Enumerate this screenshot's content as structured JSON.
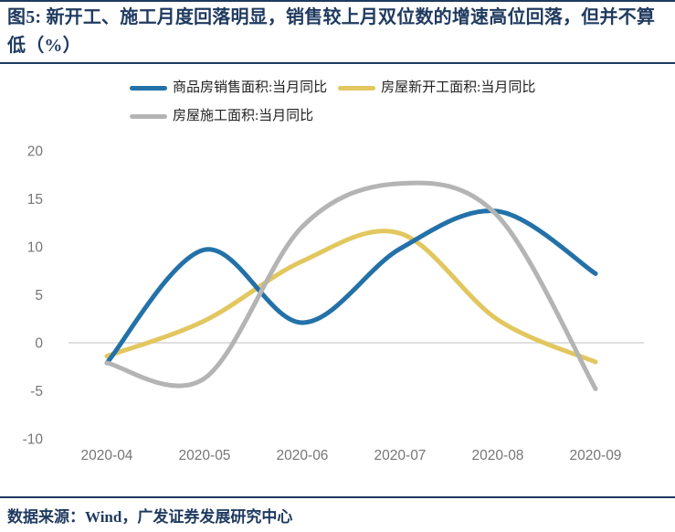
{
  "figure": {
    "title": "图5: 新开工、施工月度回落明显，销售较上月双位数的增速高位回落，但并不算低（%）",
    "source_note": "数据来源：Wind，广发证券发展研究中心"
  },
  "colors": {
    "navy": "#1F3A5F",
    "blue": "#2371A8",
    "yellow": "#E2C75F",
    "gray": "#B4B4B4",
    "axis_text": "#767676",
    "zero_line": "#D6D6D6"
  },
  "chart_data": {
    "type": "line",
    "title": "新开工、施工月度回落明显，销售较上月双位数的增速高位回落，但并不算低",
    "unit": "%",
    "categories": [
      "2020-04",
      "2020-05",
      "2020-06",
      "2020-07",
      "2020-08",
      "2020-09"
    ],
    "series": [
      {
        "name": "商品房销售面积:当月同比",
        "color_key": "blue",
        "values": [
          -2.1,
          9.7,
          2.1,
          9.8,
          13.7,
          7.2
        ]
      },
      {
        "name": "房屋新开工面积:当月同比",
        "color_key": "yellow",
        "values": [
          -1.4,
          2.3,
          8.5,
          11.4,
          2.4,
          -2.0
        ]
      },
      {
        "name": "房屋施工面积:当月同比",
        "color_key": "gray",
        "values": [
          -2.1,
          -3.7,
          12.1,
          16.6,
          13.2,
          -4.8
        ]
      }
    ],
    "y_ticks": [
      20,
      15,
      10,
      5,
      0,
      -5,
      -10
    ],
    "ylim": [
      -10,
      20
    ],
    "xlabel": "",
    "ylabel": "",
    "grid": "zero-line-only",
    "legend_position": "top",
    "line_smoothing": true
  }
}
